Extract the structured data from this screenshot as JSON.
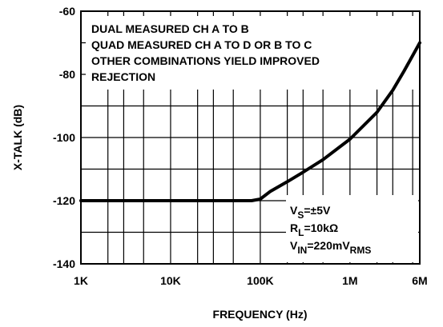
{
  "chart_data": {
    "type": "line",
    "xscale": "log",
    "xlim": [
      1000,
      6000000
    ],
    "ylim": [
      -140,
      -60
    ],
    "xlabel": "FREQUENCY (Hz)",
    "ylabel": "X-TALK (dB)",
    "grid": true,
    "x_ticks": [
      {
        "value": 1000,
        "label": "1K"
      },
      {
        "value": 10000,
        "label": "10K"
      },
      {
        "value": 100000,
        "label": "100K"
      },
      {
        "value": 1000000,
        "label": "1M"
      },
      {
        "value": 6000000,
        "label": "6M"
      }
    ],
    "y_ticks": [
      {
        "value": -60,
        "label": "-60"
      },
      {
        "value": -80,
        "label": "-80"
      },
      {
        "value": -100,
        "label": "-100"
      },
      {
        "value": -120,
        "label": "-120"
      },
      {
        "value": -140,
        "label": "-140"
      }
    ],
    "series": [
      {
        "x": [
          1000,
          10000,
          80000,
          100000,
          130000,
          200000,
          300000,
          500000,
          1000000,
          2000000,
          3000000,
          4000000,
          6000000
        ],
        "y": [
          -120,
          -120,
          -120,
          -119.5,
          -117,
          -114,
          -111,
          -107,
          -100.5,
          -92,
          -85,
          -79,
          -70
        ]
      }
    ],
    "annotations": {
      "notes": [
        "DUAL MEASURED CH A TO B",
        "QUAD MEASURED CH A TO D OR B TO C",
        "OTHER COMBINATIONS YIELD IMPROVED",
        "REJECTION"
      ],
      "conditions": [
        {
          "main": "V",
          "sub": "S",
          "tail": "=±5V",
          "tailsub": ""
        },
        {
          "main": "R",
          "sub": "L",
          "tail": "=10kΩ",
          "tailsub": ""
        },
        {
          "main": "V",
          "sub": "IN",
          "tail": "=220mV",
          "tailsub": "RMS"
        }
      ]
    }
  }
}
